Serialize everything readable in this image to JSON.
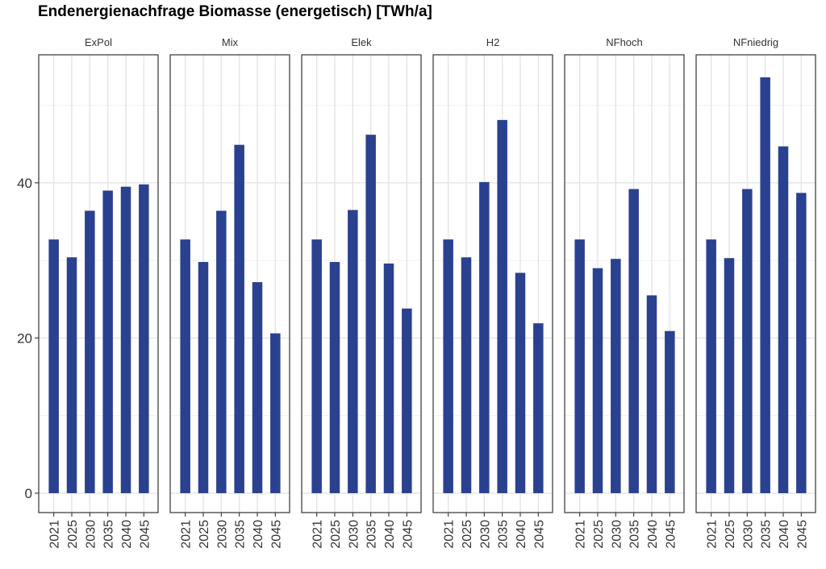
{
  "chart_data": {
    "type": "bar",
    "title": "Endenergienachfrage Biomasse (energetisch) [TWh/a]",
    "xlabel": "",
    "ylabel": "",
    "categories": [
      "2021",
      "2025",
      "2030",
      "2035",
      "2040",
      "2045"
    ],
    "ylim": [
      -2.5,
      56.5
    ],
    "yticks": [
      0,
      20,
      40
    ],
    "yticks_minor": [
      10,
      30,
      50
    ],
    "grid": true,
    "bar_color": "#2a4190",
    "panels": [
      {
        "name": "ExPol",
        "values": [
          32.7,
          30.4,
          36.4,
          39.0,
          39.5,
          39.8
        ]
      },
      {
        "name": "Mix",
        "values": [
          32.7,
          29.8,
          36.4,
          44.9,
          27.2,
          20.6
        ]
      },
      {
        "name": "Elek",
        "values": [
          32.7,
          29.8,
          36.5,
          46.2,
          29.6,
          23.8
        ]
      },
      {
        "name": "H2",
        "values": [
          32.7,
          30.4,
          40.1,
          48.1,
          28.4,
          21.9
        ]
      },
      {
        "name": "NFhoch",
        "values": [
          32.7,
          29.0,
          30.2,
          39.2,
          25.5,
          20.9
        ]
      },
      {
        "name": "NFniedrig",
        "values": [
          32.7,
          30.3,
          39.2,
          53.6,
          44.7,
          38.7
        ]
      }
    ]
  }
}
